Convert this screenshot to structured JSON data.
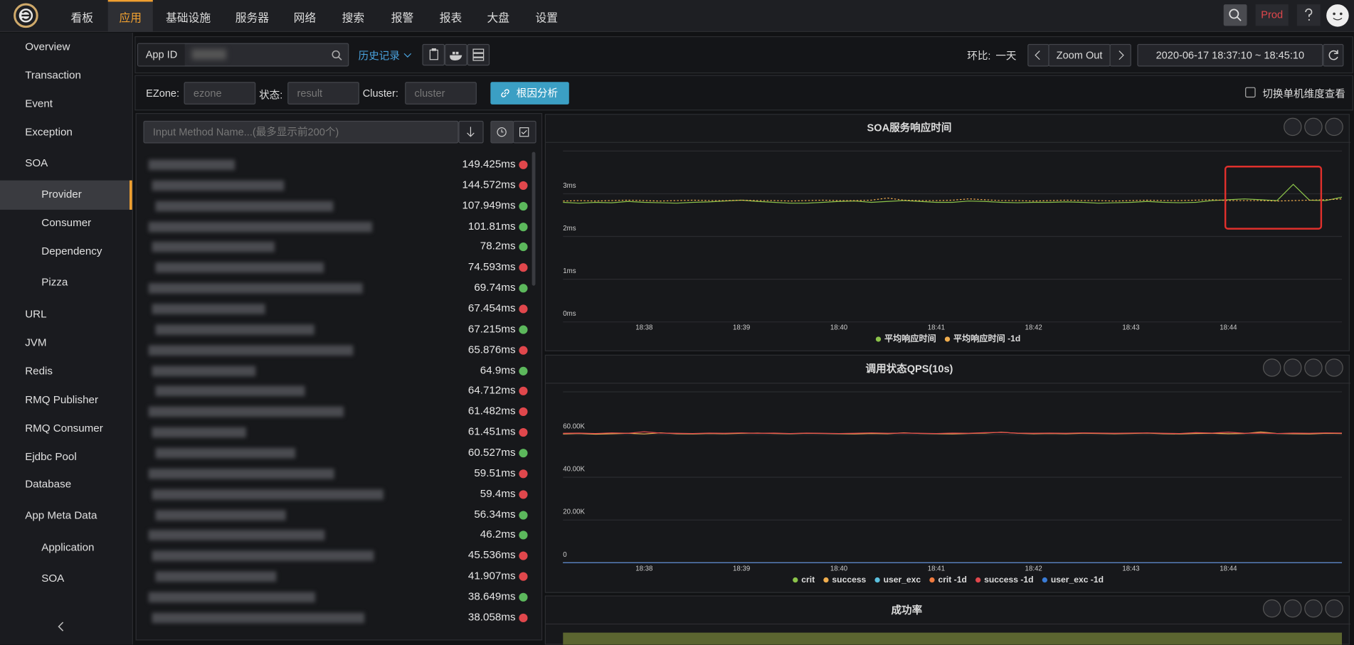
{
  "nav": {
    "items": [
      "看板",
      "应用",
      "基础设施",
      "服务器",
      "网络",
      "搜索",
      "报警",
      "报表",
      "大盘",
      "设置"
    ],
    "active": 1,
    "env": "Prod"
  },
  "sidebar": {
    "items": [
      {
        "label": "Overview",
        "level": 0
      },
      {
        "label": "Transaction",
        "level": 0
      },
      {
        "label": "Event",
        "level": 0
      },
      {
        "label": "Exception",
        "level": 0
      },
      {
        "label": "SOA",
        "level": 0,
        "expanded": true
      },
      {
        "label": "Provider",
        "level": 1,
        "active": true
      },
      {
        "label": "Consumer",
        "level": 1
      },
      {
        "label": "Dependency",
        "level": 1
      },
      {
        "label": "Pizza",
        "level": 1
      },
      {
        "label": "URL",
        "level": 0
      },
      {
        "label": "JVM",
        "level": 0
      },
      {
        "label": "Redis",
        "level": 0
      },
      {
        "label": "RMQ Publisher",
        "level": 0
      },
      {
        "label": "RMQ Consumer",
        "level": 0
      },
      {
        "label": "Ejdbc Pool",
        "level": 0
      },
      {
        "label": "Database",
        "level": 0
      },
      {
        "label": "App Meta Data",
        "level": 0,
        "expanded": true
      },
      {
        "label": "Application",
        "level": 1
      },
      {
        "label": "SOA",
        "level": 1
      }
    ]
  },
  "toolbar": {
    "app_id_label": "App ID",
    "history": "历史记录",
    "compare_label": "环比:",
    "compare_value": "一天",
    "zoom": "Zoom Out",
    "time_range": "2020-06-17 18:37:10 ~ 18:45:10"
  },
  "filters": {
    "ezone_label": "EZone:",
    "ezone_placeholder": "ezone",
    "status_label": "状态:",
    "status_placeholder": "result",
    "cluster_label": "Cluster:",
    "cluster_placeholder": "cluster",
    "root_cause": "根因分析",
    "switch": "切换单机维度查看"
  },
  "methods": {
    "search_placeholder": "Input Method Name...(最多显示前200个)",
    "rows": [
      {
        "value": "149.425ms",
        "color": "#e0474c"
      },
      {
        "value": "144.572ms",
        "color": "#e0474c"
      },
      {
        "value": "107.949ms",
        "color": "#5cb85c"
      },
      {
        "value": "101.81ms",
        "color": "#5cb85c"
      },
      {
        "value": "78.2ms",
        "color": "#5cb85c"
      },
      {
        "value": "74.593ms",
        "color": "#e0474c"
      },
      {
        "value": "69.74ms",
        "color": "#5cb85c"
      },
      {
        "value": "67.454ms",
        "color": "#e0474c"
      },
      {
        "value": "67.215ms",
        "color": "#5cb85c"
      },
      {
        "value": "65.876ms",
        "color": "#e0474c"
      },
      {
        "value": "64.9ms",
        "color": "#5cb85c"
      },
      {
        "value": "64.712ms",
        "color": "#e0474c"
      },
      {
        "value": "61.482ms",
        "color": "#e0474c"
      },
      {
        "value": "61.451ms",
        "color": "#e0474c"
      },
      {
        "value": "60.527ms",
        "color": "#5cb85c"
      },
      {
        "value": "59.51ms",
        "color": "#e0474c"
      },
      {
        "value": "59.4ms",
        "color": "#e0474c"
      },
      {
        "value": "56.34ms",
        "color": "#5cb85c"
      },
      {
        "value": "46.2ms",
        "color": "#5cb85c"
      },
      {
        "value": "45.536ms",
        "color": "#e0474c"
      },
      {
        "value": "41.907ms",
        "color": "#e0474c"
      },
      {
        "value": "38.649ms",
        "color": "#5cb85c"
      },
      {
        "value": "38.058ms",
        "color": "#e0474c"
      }
    ]
  },
  "chart_data": [
    {
      "type": "line",
      "title": "SOA服务响应时间",
      "categories": [
        null,
        null,
        null,
        null,
        null,
        "18:38",
        null,
        null,
        null,
        null,
        null,
        "18:39",
        null,
        null,
        null,
        null,
        null,
        "18:40",
        null,
        null,
        null,
        null,
        null,
        "18:41",
        null,
        null,
        null,
        null,
        null,
        "18:42",
        null,
        null,
        null,
        null,
        null,
        "18:43",
        null,
        null,
        null,
        null,
        null,
        "18:44",
        null,
        null,
        null,
        null,
        null,
        null,
        null
      ],
      "ylim": [
        0,
        4
      ],
      "yticks": [
        {
          "value": 0,
          "label": "0ms"
        },
        {
          "value": 1,
          "label": "1ms"
        },
        {
          "value": 2,
          "label": "2ms"
        },
        {
          "value": 3,
          "label": "3ms"
        }
      ],
      "grid": true,
      "series": [
        {
          "name": "平均响应时间",
          "color": "#8bc34a",
          "values": [
            2.8,
            2.78,
            2.8,
            2.79,
            2.82,
            2.8,
            2.79,
            2.78,
            2.8,
            2.81,
            2.83,
            2.85,
            2.82,
            2.8,
            2.78,
            2.78,
            2.8,
            2.82,
            2.83,
            2.8,
            2.82,
            2.84,
            2.82,
            2.8,
            2.8,
            2.83,
            2.82,
            2.8,
            2.79,
            2.8,
            2.8,
            2.81,
            2.8,
            2.78,
            2.79,
            2.8,
            2.82,
            2.8,
            2.79,
            2.8,
            2.84,
            2.86,
            2.88,
            2.86,
            2.84,
            3.22,
            2.85,
            2.84,
            2.92
          ]
        },
        {
          "name": "平均响应时间 -1d",
          "color": "#f0ad4e",
          "dash": "dotted",
          "values": [
            2.83,
            2.84,
            2.83,
            2.84,
            2.85,
            2.84,
            2.83,
            2.84,
            2.85,
            2.84,
            2.84,
            2.85,
            2.84,
            2.84,
            2.83,
            2.84,
            2.85,
            2.84,
            2.84,
            2.85,
            2.9,
            2.85,
            2.84,
            2.84,
            2.85,
            2.88,
            2.86,
            2.84,
            2.84,
            2.83,
            2.84,
            2.85,
            2.84,
            2.84,
            2.83,
            2.84,
            2.85,
            2.84,
            2.84,
            2.85,
            2.86,
            2.84,
            2.84,
            2.84,
            2.83,
            2.84,
            2.85,
            2.86,
            2.88
          ]
        }
      ]
    },
    {
      "type": "line",
      "title": "调用状态QPS(10s)",
      "categories": [
        null,
        null,
        null,
        null,
        null,
        "18:38",
        null,
        null,
        null,
        null,
        null,
        "18:39",
        null,
        null,
        null,
        null,
        null,
        "18:40",
        null,
        null,
        null,
        null,
        null,
        "18:41",
        null,
        null,
        null,
        null,
        null,
        "18:42",
        null,
        null,
        null,
        null,
        null,
        "18:43",
        null,
        null,
        null,
        null,
        null,
        "18:44",
        null,
        null,
        null,
        null,
        null,
        null,
        null
      ],
      "ylim": [
        0,
        80000
      ],
      "yticks": [
        0,
        {
          "value": 20000,
          "label": "20.00K"
        },
        {
          "value": 40000,
          "label": "40.00K"
        },
        {
          "value": 60000,
          "label": "60.00K"
        }
      ],
      "grid": true,
      "series": [
        {
          "name": "crit",
          "color": "#8bc34a",
          "values": [
            0,
            0,
            0,
            0,
            0,
            0,
            0,
            0,
            0,
            0,
            0,
            0,
            0,
            0,
            0,
            0,
            0,
            0,
            0,
            0,
            0,
            0,
            0,
            0,
            0,
            0,
            0,
            0,
            0,
            0,
            0,
            0,
            0,
            0,
            0,
            0,
            0,
            0,
            0,
            0,
            0,
            0,
            0,
            0,
            0,
            0,
            0,
            0,
            0
          ]
        },
        {
          "name": "success",
          "color": "#f0ad4e",
          "values": [
            60300,
            60500,
            60200,
            60400,
            60600,
            60300,
            60800,
            60400,
            60300,
            60500,
            60400,
            60600,
            60700,
            60500,
            60400,
            60600,
            60500,
            60400,
            60300,
            60500,
            60400,
            60800,
            60500,
            60400,
            60300,
            60500,
            60700,
            61100,
            60600,
            60400,
            60500,
            60400,
            60600,
            60500,
            60400,
            60500,
            60700,
            60400,
            60300,
            60500,
            60600,
            60400,
            60500,
            61200,
            60500,
            60400,
            60300,
            60600,
            60500
          ]
        },
        {
          "name": "user_exc",
          "color": "#5bc0de",
          "values": [
            0,
            0,
            0,
            0,
            0,
            0,
            0,
            0,
            0,
            0,
            0,
            0,
            0,
            0,
            0,
            0,
            0,
            0,
            0,
            0,
            0,
            0,
            0,
            0,
            0,
            0,
            0,
            0,
            0,
            0,
            0,
            0,
            0,
            0,
            0,
            0,
            0,
            0,
            0,
            0,
            0,
            0,
            0,
            0,
            0,
            0,
            0,
            0,
            0
          ]
        },
        {
          "name": "crit -1d",
          "color": "#f07b3f",
          "values": [
            0,
            0,
            0,
            0,
            0,
            0,
            0,
            0,
            0,
            0,
            0,
            0,
            0,
            0,
            0,
            0,
            0,
            0,
            0,
            0,
            0,
            0,
            0,
            0,
            0,
            0,
            0,
            0,
            0,
            0,
            0,
            0,
            0,
            0,
            0,
            0,
            0,
            0,
            0,
            0,
            0,
            0,
            0,
            0,
            0,
            0,
            0,
            0,
            0
          ]
        },
        {
          "name": "success -1d",
          "color": "#e0474c",
          "values": [
            60600,
            60700,
            60500,
            60800,
            60600,
            61300,
            60700,
            60600,
            60500,
            60700,
            60600,
            60800,
            60600,
            60700,
            60500,
            60700,
            60600,
            60500,
            60600,
            60800,
            60600,
            60700,
            60600,
            60500,
            60700,
            60600,
            60900,
            61000,
            60700,
            60600,
            60700,
            60600,
            60800,
            60700,
            60600,
            60700,
            60800,
            60600,
            60500,
            60900,
            60700,
            61100,
            60600,
            60700,
            60500,
            60700,
            60600,
            60800,
            60700
          ]
        },
        {
          "name": "user_exc -1d",
          "color": "#3a7bd5",
          "values": [
            0,
            0,
            0,
            0,
            0,
            0,
            0,
            0,
            0,
            0,
            0,
            0,
            0,
            0,
            0,
            0,
            0,
            0,
            0,
            0,
            0,
            0,
            0,
            0,
            0,
            0,
            0,
            0,
            0,
            0,
            0,
            0,
            0,
            0,
            0,
            0,
            0,
            0,
            0,
            0,
            0,
            0,
            0,
            0,
            0,
            0,
            0,
            0,
            0
          ]
        }
      ]
    }
  ],
  "success_panel": {
    "title": "成功率"
  }
}
